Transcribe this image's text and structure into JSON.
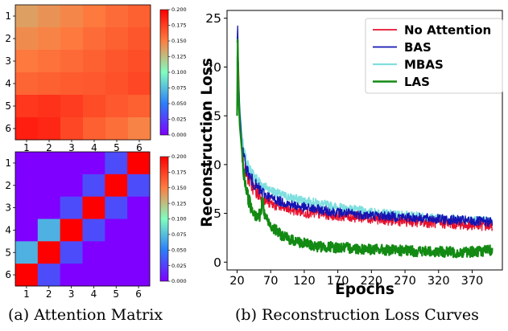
{
  "captions": {
    "a": "(a) Attention Matrix",
    "b": "(b) Reconstruction Loss Curves"
  },
  "colors": {
    "No Attention": "#e8112d",
    "BAS": "#1414b4",
    "MBAS": "#80dfdf",
    "LAS": "#138a13"
  },
  "chart_data": [
    {
      "type": "heatmap",
      "row_labels": [
        "1",
        "2",
        "3",
        "4",
        "5",
        "6"
      ],
      "col_labels": [
        "1",
        "2",
        "3",
        "4",
        "5",
        "6"
      ],
      "values": [
        [
          0.137,
          0.142,
          0.147,
          0.152,
          0.157,
          0.162
        ],
        [
          0.145,
          0.148,
          0.152,
          0.157,
          0.162,
          0.166
        ],
        [
          0.152,
          0.155,
          0.158,
          0.162,
          0.166,
          0.169
        ],
        [
          0.16,
          0.162,
          0.164,
          0.165,
          0.168,
          0.172
        ],
        [
          0.178,
          0.18,
          0.176,
          0.17,
          0.165,
          0.162
        ],
        [
          0.188,
          0.185,
          0.172,
          0.162,
          0.156,
          0.148
        ]
      ],
      "colorbar": {
        "range": [
          0,
          0.2
        ],
        "ticks": [
          "0.000",
          "0.025",
          "0.050",
          "0.075",
          "0.100",
          "0.125",
          "0.150",
          "0.175",
          "0.200"
        ]
      }
    },
    {
      "type": "heatmap",
      "row_labels": [
        "1",
        "2",
        "3",
        "4",
        "5",
        "6"
      ],
      "col_labels": [
        "1",
        "2",
        "3",
        "4",
        "5",
        "6"
      ],
      "values": [
        [
          0.0,
          0.0,
          0.0,
          0.0,
          0.03,
          0.2
        ],
        [
          0.0,
          0.0,
          0.0,
          0.03,
          0.2,
          0.03
        ],
        [
          0.0,
          0.0,
          0.03,
          0.2,
          0.03,
          0.0
        ],
        [
          0.0,
          0.07,
          0.2,
          0.03,
          0.0,
          0.0
        ],
        [
          0.07,
          0.2,
          0.03,
          0.0,
          0.0,
          0.0
        ],
        [
          0.2,
          0.03,
          0.0,
          0.0,
          0.0,
          0.0
        ]
      ],
      "colorbar": {
        "range": [
          0,
          0.2
        ],
        "ticks": [
          "0.000",
          "0.025",
          "0.050",
          "0.075",
          "0.100",
          "0.125",
          "0.150",
          "0.175",
          "0.200"
        ]
      }
    },
    {
      "type": "line",
      "xlabel": "Epochs",
      "ylabel": "Reconstruction Loss",
      "xticks": [
        20,
        70,
        120,
        170,
        220,
        270,
        320,
        370
      ],
      "yticks": [
        0,
        5,
        10,
        15,
        20,
        25
      ],
      "xlim": [
        5,
        415
      ],
      "ylim": [
        -0.8,
        25.8
      ],
      "legend": "top-right",
      "series": [
        {
          "name": "No Attention",
          "x": [
            20,
            21,
            22,
            24,
            27,
            30,
            35,
            40,
            50,
            60,
            70,
            85,
            100,
            120,
            150,
            170,
            200,
            220,
            250,
            270,
            300,
            320,
            350,
            370,
            400
          ],
          "y": [
            21.0,
            17.5,
            20.5,
            14.5,
            11.5,
            10.0,
            8.8,
            8.0,
            7.1,
            6.4,
            6.0,
            5.6,
            5.4,
            5.1,
            4.9,
            4.8,
            4.6,
            4.5,
            4.3,
            4.2,
            4.1,
            4.0,
            3.9,
            3.8,
            3.7
          ]
        },
        {
          "name": "BAS",
          "x": [
            20,
            21,
            22,
            24,
            27,
            30,
            35,
            40,
            50,
            60,
            70,
            85,
            100,
            120,
            150,
            170,
            200,
            220,
            250,
            270,
            300,
            320,
            350,
            370,
            400
          ],
          "y": [
            22.5,
            24.2,
            19.0,
            15.5,
            12.2,
            10.6,
            9.4,
            8.6,
            7.6,
            7.0,
            6.6,
            6.2,
            5.9,
            5.6,
            5.3,
            5.1,
            4.9,
            4.8,
            4.7,
            4.6,
            4.5,
            4.4,
            4.3,
            4.2,
            4.1
          ]
        },
        {
          "name": "MBAS",
          "x": [
            20,
            21,
            22,
            24,
            27,
            30,
            35,
            40,
            50,
            60,
            70,
            85,
            100,
            120,
            150,
            170,
            200,
            220,
            250,
            270,
            300,
            320,
            350,
            370,
            400
          ],
          "y": [
            20.0,
            22.5,
            18.5,
            15.8,
            12.8,
            11.2,
            10.0,
            9.3,
            8.4,
            7.8,
            7.4,
            6.9,
            6.6,
            6.3,
            5.9,
            5.6,
            5.3,
            5.1,
            4.9,
            4.8,
            4.6,
            4.5,
            4.4,
            4.3,
            4.2
          ]
        },
        {
          "name": "LAS",
          "x": [
            20,
            21,
            22,
            24,
            27,
            30,
            35,
            40,
            45,
            50,
            55,
            58,
            60,
            65,
            70,
            80,
            90,
            100,
            120,
            140,
            170,
            200,
            250,
            300,
            350,
            400
          ],
          "y": [
            15.0,
            22.8,
            17.5,
            14.0,
            11.0,
            9.0,
            7.0,
            5.8,
            5.2,
            4.8,
            4.7,
            6.8,
            5.0,
            4.3,
            3.8,
            3.1,
            2.6,
            2.3,
            1.9,
            1.6,
            1.5,
            1.4,
            1.2,
            1.1,
            1.0,
            1.2
          ]
        }
      ]
    }
  ]
}
